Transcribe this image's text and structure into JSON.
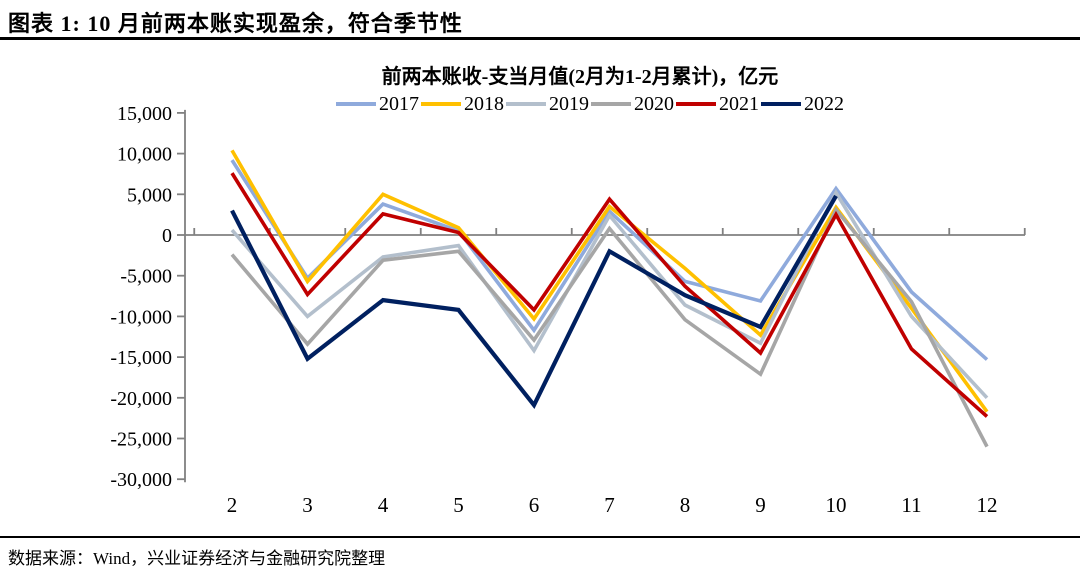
{
  "header": {
    "figure_title": "图表 1: 10 月前两本账实现盈余，符合季节性"
  },
  "footer": {
    "source": "数据来源：Wind，兴业证券经济与金融研究院整理"
  },
  "chart_data": {
    "type": "line",
    "title": "前两本账收-支当月值(2月为1-2月累计)，亿元",
    "x": [
      2,
      3,
      4,
      5,
      6,
      7,
      8,
      9,
      10,
      11,
      12
    ],
    "xlabel": "",
    "ylabel": "",
    "ylim": [
      -30000,
      15000
    ],
    "ytick_step": 5000,
    "grid": "zero-line-only",
    "legend_position": "top",
    "axis_color": "#808080",
    "series": [
      {
        "name": "2017",
        "color": "#8faadc",
        "values": [
          9200,
          -5300,
          3800,
          500,
          -11700,
          2900,
          -5700,
          -8100,
          5700,
          -7000,
          -15300
        ]
      },
      {
        "name": "2018",
        "color": "#ffc000",
        "values": [
          10400,
          -5700,
          5000,
          900,
          -10300,
          3500,
          -4100,
          -12300,
          3400,
          -9000,
          -21700
        ]
      },
      {
        "name": "2019",
        "color": "#b3bfcc",
        "values": [
          600,
          -10000,
          -2700,
          -1300,
          -14200,
          2400,
          -8600,
          -13300,
          5200,
          -10000,
          -20000
        ]
      },
      {
        "name": "2020",
        "color": "#a6a6a6",
        "values": [
          -2400,
          -13400,
          -3100,
          -2000,
          -12900,
          800,
          -10400,
          -17100,
          3100,
          -8200,
          -26000
        ]
      },
      {
        "name": "2021",
        "color": "#c00000",
        "values": [
          7600,
          -7300,
          2600,
          300,
          -9200,
          4400,
          -6300,
          -14500,
          2500,
          -14000,
          -22300
        ]
      },
      {
        "name": "2022",
        "color": "#002060",
        "values": [
          3000,
          -15200,
          -8000,
          -9200,
          -20900,
          -2000,
          -7400,
          -11300,
          4800,
          null,
          null
        ]
      }
    ]
  }
}
